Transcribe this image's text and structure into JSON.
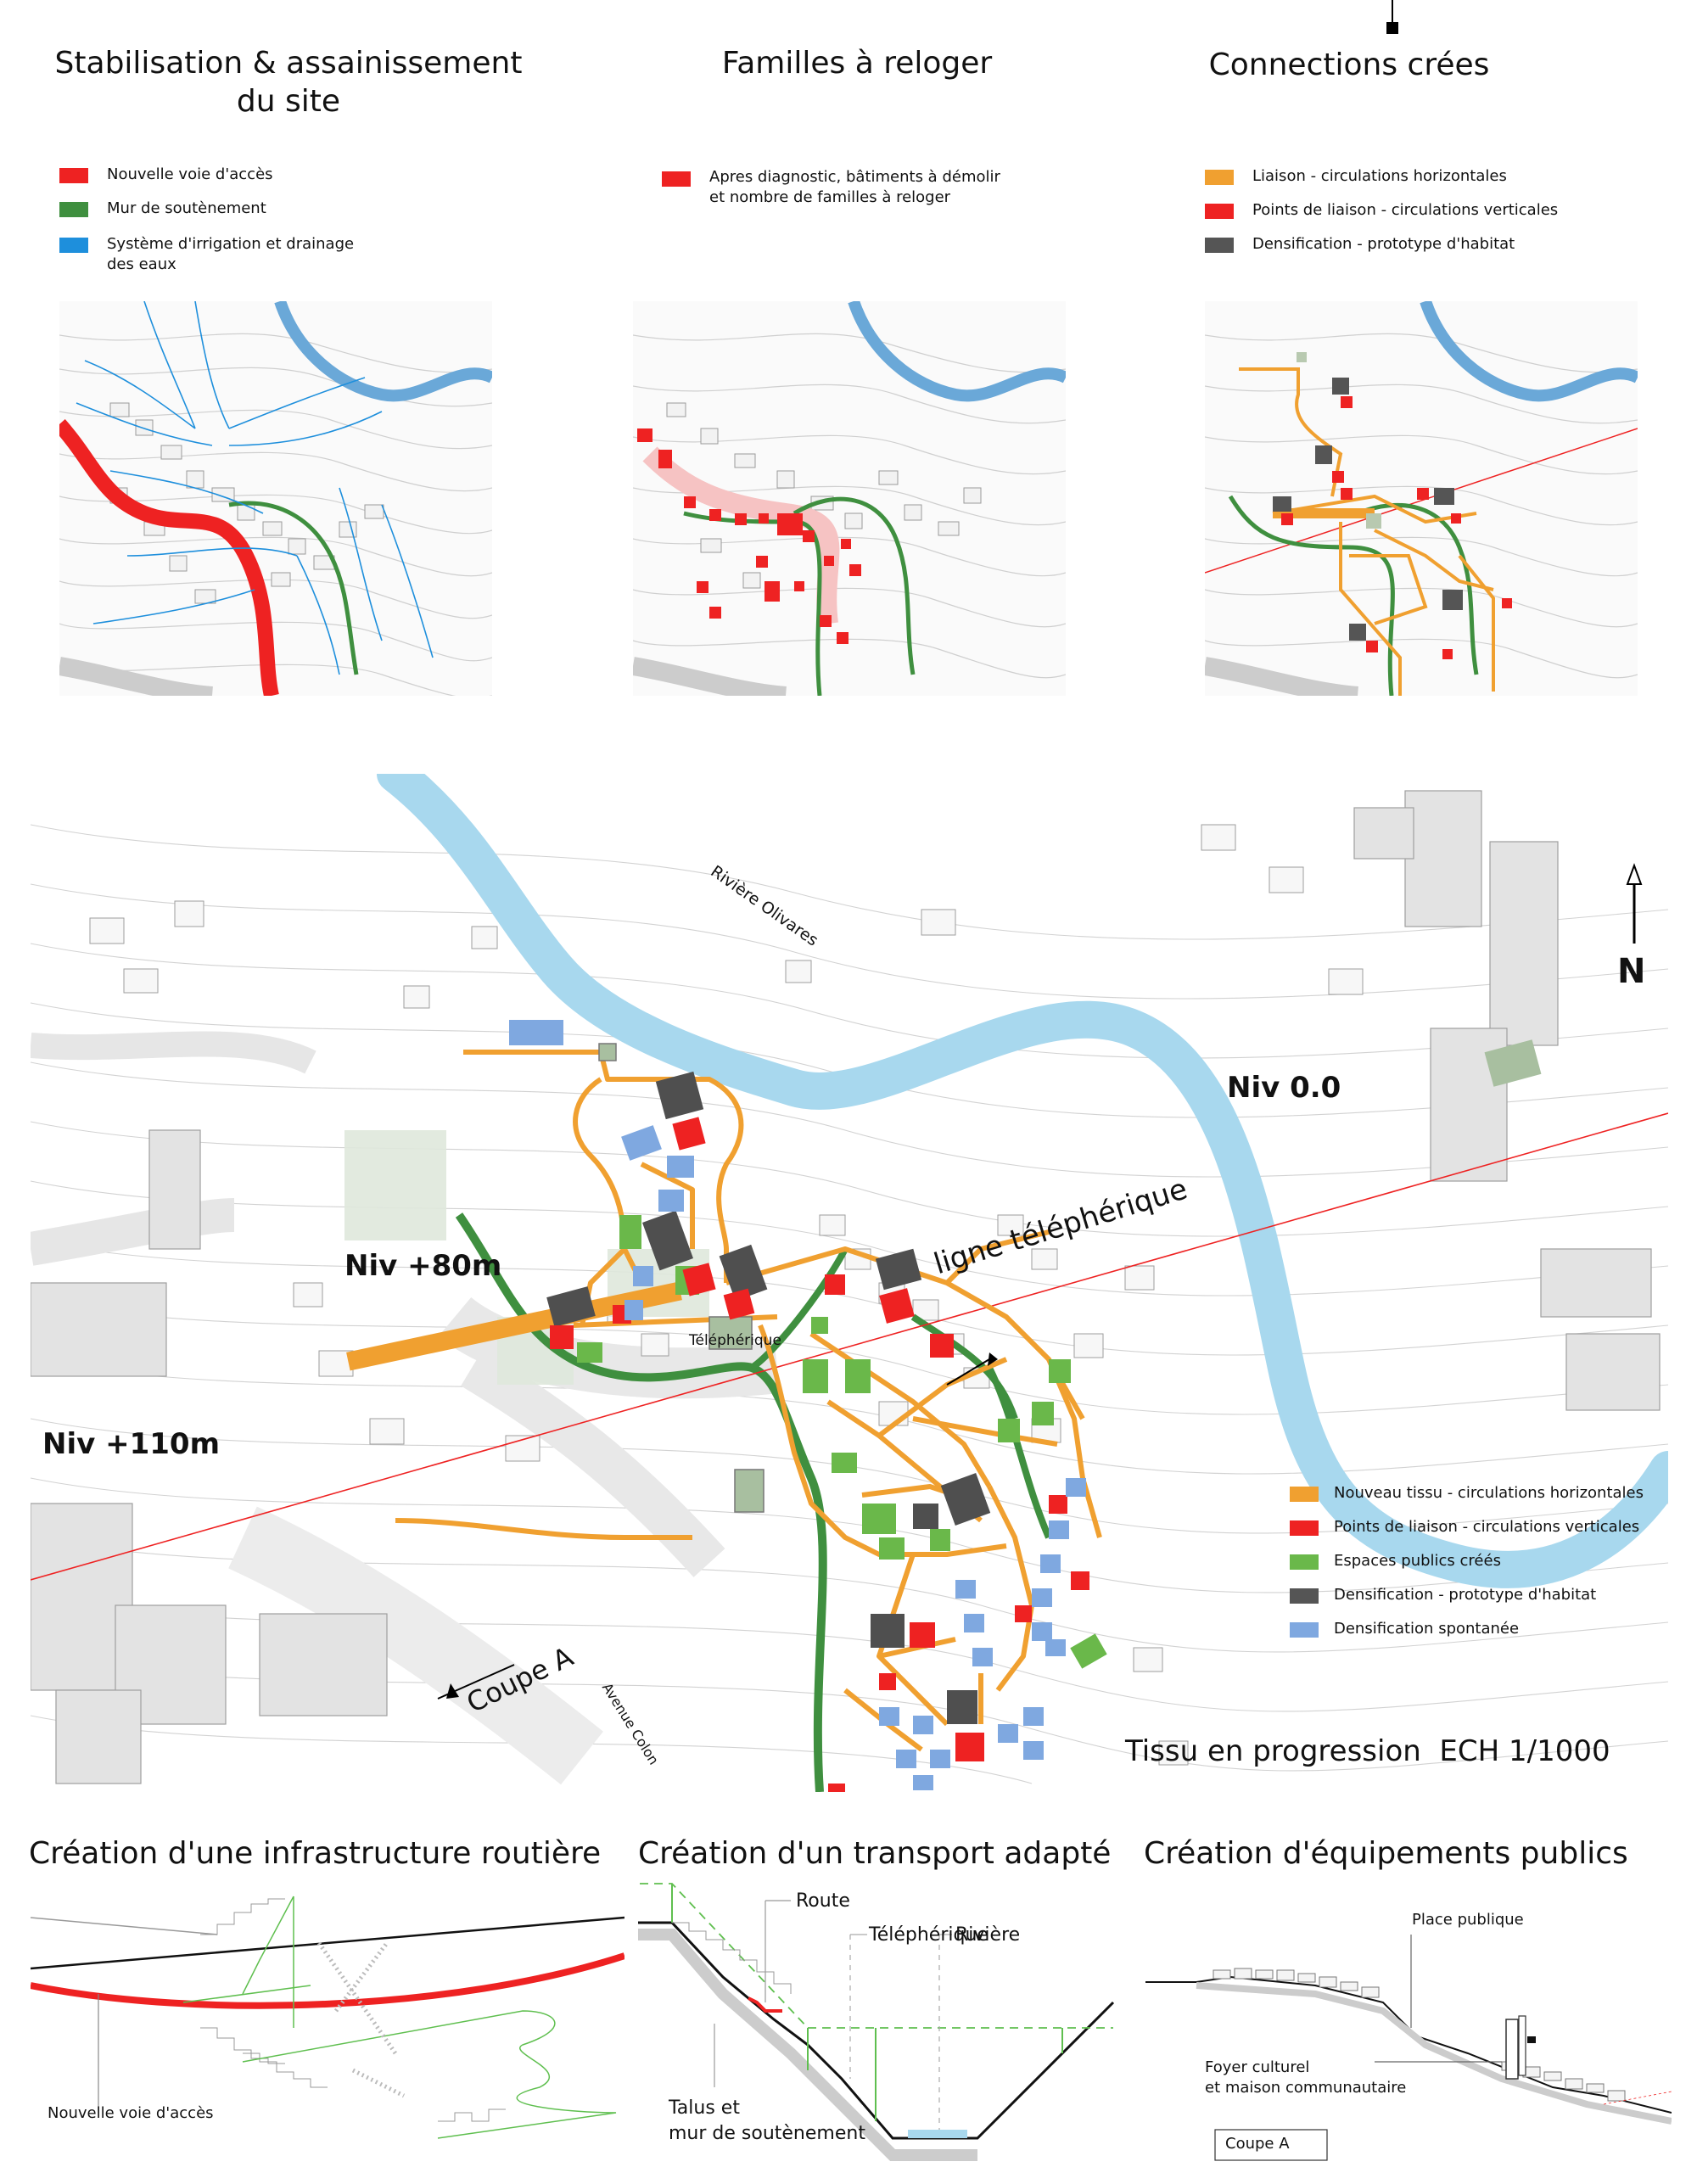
{
  "panels": [
    {
      "title_line1": "Stabilisation & assainissement",
      "title_line2": "du site",
      "legend": [
        {
          "label": "Nouvelle voie d'accès",
          "color": "#ee2222"
        },
        {
          "label": "Mur de soutènement",
          "color": "#3f8f3f"
        },
        {
          "label": "Système d'irrigation et drainage",
          "label2": "des eaux",
          "color": "#1e8fdc"
        }
      ]
    },
    {
      "title_line1": "Familles à reloger",
      "legend": [
        {
          "label": "Apres diagnostic, bâtiments à démolir",
          "label2": "et nombre de familles à reloger",
          "color": "#ee2222"
        }
      ]
    },
    {
      "title_line1": "Connections crées",
      "legend": [
        {
          "label": "Liaison - circulations horizontales",
          "color": "#f0a030"
        },
        {
          "label": "Points de liaison - circulations verticales",
          "color": "#ee2222"
        },
        {
          "label": "Densification - prototype d'habitat",
          "color": "#555555"
        }
      ]
    }
  ],
  "main_map": {
    "river_label": "Rivière Olivares",
    "north": "N",
    "niv_top": "Niv 0.0",
    "niv_mid": "Niv +80m",
    "niv_low": "Niv +110m",
    "cable_label": "ligne téléphérique",
    "station_label": "Téléphérique",
    "coupe_label": "Coupe A",
    "avenue_label": "Avenue Colon",
    "caption": "Tissu en progression  ECH 1/1000",
    "legend": [
      {
        "label": "Nouveau tissu - circulations horizontales",
        "color": "#f0a030"
      },
      {
        "label": "Points de liaison - circulations verticales",
        "color": "#ee2222"
      },
      {
        "label": "Espaces publics créés",
        "color": "#6ab84a"
      },
      {
        "label": "Densification - prototype d'habitat",
        "color": "#555555"
      },
      {
        "label": "Densification spontanée",
        "color": "#7fa8e0"
      }
    ]
  },
  "sections": [
    {
      "title": "Création d'une infrastructure routière",
      "labels": [
        "Nouvelle voie d'accès"
      ]
    },
    {
      "title": "Création d'un transport adapté",
      "labels": [
        "Route",
        "Téléphérique",
        "Rivière",
        "Talus et",
        "mur de soutènement"
      ]
    },
    {
      "title": "Création d'équipements publics",
      "labels": [
        "Place publique",
        "Foyer culturel",
        "et maison communautaire",
        "Coupe A"
      ]
    }
  ],
  "colors": {
    "river": "#a8d8ee",
    "river_dark": "#6aa8d8",
    "contour": "#c8c8c8",
    "cable": "#ee2222"
  }
}
